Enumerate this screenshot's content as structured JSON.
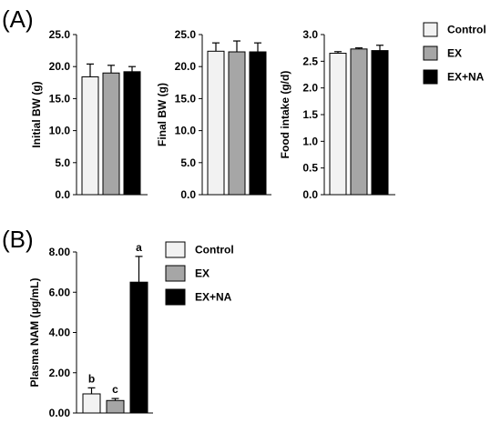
{
  "panel_labels": {
    "a": "(A)",
    "b": "(B)"
  },
  "colors": {
    "control": "#f2f2f2",
    "ex": "#a6a6a6",
    "ex_na": "#000000"
  },
  "legend": [
    "Control",
    "EX",
    "EX+NA"
  ],
  "chart_data": [
    {
      "type": "bar",
      "title": "",
      "ylabel": "Initial BW (g)",
      "ylim": [
        0,
        25
      ],
      "yticks": [
        "0.0",
        "5.0",
        "10.0",
        "15.0",
        "20.0",
        "25.0"
      ],
      "categories": [
        "Control",
        "EX",
        "EX+NA"
      ],
      "values": [
        18.4,
        19.0,
        19.2
      ],
      "errors": [
        2.0,
        1.2,
        0.8
      ]
    },
    {
      "type": "bar",
      "title": "",
      "ylabel": "Final BW (g)",
      "ylim": [
        0,
        25
      ],
      "yticks": [
        "0.0",
        "5.0",
        "10.0",
        "15.0",
        "20.0",
        "25.0"
      ],
      "categories": [
        "Control",
        "EX",
        "EX+NA"
      ],
      "values": [
        22.4,
        22.3,
        22.3
      ],
      "errors": [
        1.3,
        1.7,
        1.4
      ]
    },
    {
      "type": "bar",
      "title": "",
      "ylabel": "Food intake (g/d)",
      "ylim": [
        0,
        3
      ],
      "yticks": [
        "0.0",
        "0.5",
        "1.0",
        "1.5",
        "2.0",
        "2.5",
        "3.0"
      ],
      "categories": [
        "Control",
        "EX",
        "EX+NA"
      ],
      "values": [
        2.65,
        2.73,
        2.7
      ],
      "errors": [
        0.03,
        0.02,
        0.1
      ]
    },
    {
      "type": "bar",
      "title": "",
      "ylabel": "Plasma NAM (μg/mL)",
      "ylim": [
        0,
        8
      ],
      "yticks": [
        "0.00",
        "2.00",
        "4.00",
        "6.00",
        "8.00"
      ],
      "categories": [
        "Control",
        "EX",
        "EX+NA"
      ],
      "values": [
        0.95,
        0.62,
        6.5
      ],
      "errors": [
        0.3,
        0.1,
        1.28
      ],
      "annotations": [
        "b",
        "c",
        "a"
      ]
    }
  ]
}
